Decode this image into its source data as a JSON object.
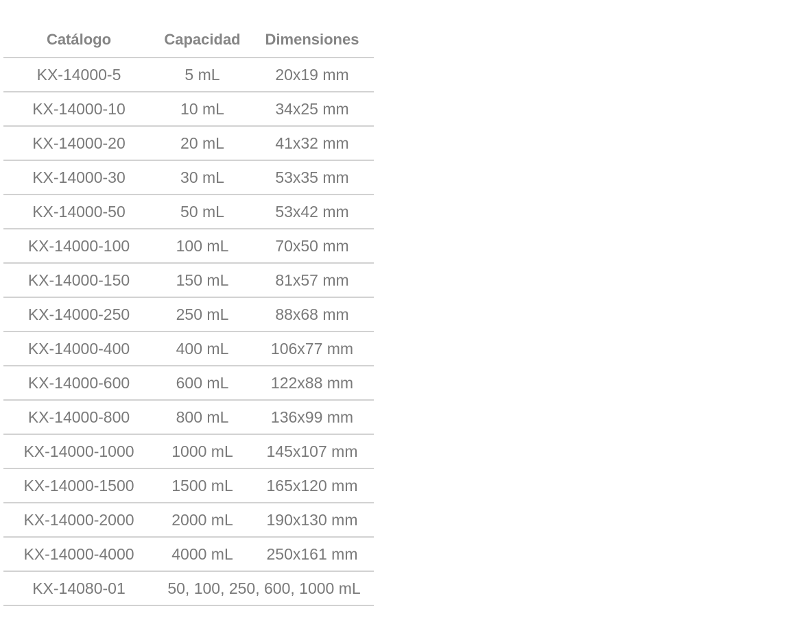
{
  "table": {
    "headers": [
      "Catálogo",
      "Capacidad",
      "Dimensiones"
    ],
    "rows": [
      [
        "KX-14000-5",
        "5 mL",
        "20x19 mm"
      ],
      [
        "KX-14000-10",
        "10 mL",
        "34x25 mm"
      ],
      [
        "KX-14000-20",
        "20 mL",
        "41x32 mm"
      ],
      [
        "KX-14000-30",
        "30 mL",
        "53x35 mm"
      ],
      [
        "KX-14000-50",
        "50 mL",
        "53x42 mm"
      ],
      [
        "KX-14000-100",
        "100 mL",
        "70x50 mm"
      ],
      [
        "KX-14000-150",
        "150 mL",
        "81x57 mm"
      ],
      [
        "KX-14000-250",
        "250 mL",
        "88x68 mm"
      ],
      [
        "KX-14000-400",
        "400 mL",
        "106x77 mm"
      ],
      [
        "KX-14000-600",
        "600 mL",
        "122x88 mm"
      ],
      [
        "KX-14000-800",
        "800 mL",
        "136x99 mm"
      ],
      [
        "KX-14000-1000",
        "1000 mL",
        "145x107 mm"
      ],
      [
        "KX-14000-1500",
        "1500 mL",
        "165x120 mm"
      ],
      [
        "KX-14000-2000",
        "2000 mL",
        "190x130 mm"
      ],
      [
        "KX-14000-4000",
        "4000 mL",
        "250x161 mm"
      ],
      [
        "KX-14080-01",
        "50, 100, 250, 600, 1000 mL"
      ]
    ]
  }
}
